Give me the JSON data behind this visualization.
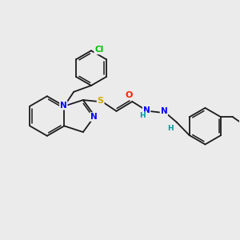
{
  "background_color": "#ebebeb",
  "bond_color": "#1a1a1a",
  "atom_colors": {
    "N": "#0000ff",
    "S": "#ccaa00",
    "O": "#ff2200",
    "Cl": "#00bb00",
    "H": "#009999",
    "C": "#1a1a1a"
  },
  "figsize": [
    3.0,
    3.0
  ],
  "dpi": 100
}
